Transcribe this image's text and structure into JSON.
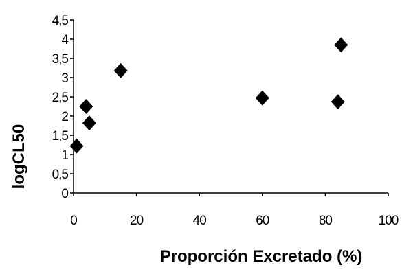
{
  "chart_data": {
    "type": "scatter",
    "title": "",
    "xlabel": "Proporción Excretado (%)",
    "ylabel": "logCL50",
    "xlim": [
      0,
      100
    ],
    "ylim": [
      0,
      4.5
    ],
    "x_ticks": [
      0,
      20,
      40,
      60,
      80,
      100
    ],
    "x_tick_labels": [
      "0",
      "20",
      "40",
      "60",
      "80",
      "100"
    ],
    "y_ticks": [
      0,
      0.5,
      1,
      1.5,
      2,
      2.5,
      3,
      3.5,
      4,
      4.5
    ],
    "y_tick_labels": [
      "0",
      "0,5",
      "1",
      "1,5",
      "2",
      "2,5",
      "3",
      "3,5",
      "4",
      "4,5"
    ],
    "grid": false,
    "legend": "none",
    "marker": "diamond",
    "marker_color": "#000000",
    "series": [
      {
        "points": [
          {
            "x": 1,
            "y": 1.22
          },
          {
            "x": 4,
            "y": 2.25
          },
          {
            "x": 5,
            "y": 1.82
          },
          {
            "x": 15,
            "y": 3.18
          },
          {
            "x": 60,
            "y": 2.47
          },
          {
            "x": 84,
            "y": 2.37
          },
          {
            "x": 85,
            "y": 3.85
          }
        ]
      }
    ]
  }
}
